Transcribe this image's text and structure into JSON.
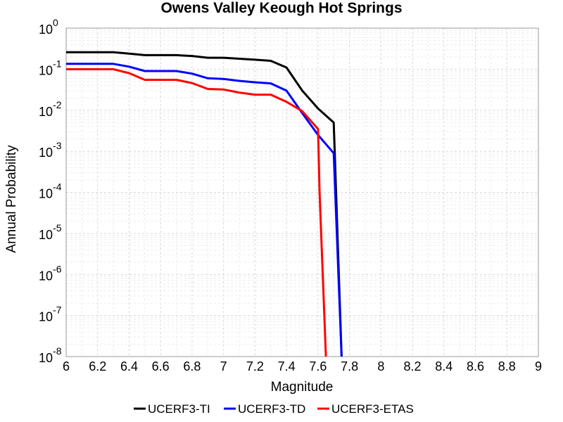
{
  "chart_data": {
    "type": "line",
    "title": "Owens Valley Keough Hot Springs",
    "xlabel": "Magnitude",
    "ylabel": "Annual Probability",
    "xlim": [
      6,
      9
    ],
    "ylim": [
      1e-08,
      1
    ],
    "yscale": "log",
    "grid": true,
    "legend_position": "bottom",
    "x_ticks": [
      "6",
      "6.2",
      "6.4",
      "6.6",
      "6.8",
      "7",
      "7.2",
      "7.4",
      "7.6",
      "7.8",
      "8",
      "8.2",
      "8.4",
      "8.6",
      "8.8",
      "9"
    ],
    "y_ticks": [
      {
        "base": "10",
        "exp": "0"
      },
      {
        "base": "10",
        "exp": "-1"
      },
      {
        "base": "10",
        "exp": "-2"
      },
      {
        "base": "10",
        "exp": "-3"
      },
      {
        "base": "10",
        "exp": "-4"
      },
      {
        "base": "10",
        "exp": "-5"
      },
      {
        "base": "10",
        "exp": "-6"
      },
      {
        "base": "10",
        "exp": "-7"
      },
      {
        "base": "10",
        "exp": "-8"
      }
    ],
    "series": [
      {
        "name": "UCERF3-TI",
        "color": "#000000",
        "x": [
          6.0,
          6.1,
          6.2,
          6.3,
          6.4,
          6.5,
          6.6,
          6.7,
          6.8,
          6.9,
          7.0,
          7.1,
          7.2,
          7.3,
          7.4,
          7.5,
          7.6,
          7.7,
          7.75
        ],
        "y": [
          0.26,
          0.26,
          0.26,
          0.26,
          0.24,
          0.22,
          0.22,
          0.22,
          0.21,
          0.19,
          0.19,
          0.18,
          0.17,
          0.16,
          0.11,
          0.03,
          0.011,
          0.005,
          1e-08
        ]
      },
      {
        "name": "UCERF3-TD",
        "color": "#0000ff",
        "x": [
          6.0,
          6.1,
          6.2,
          6.3,
          6.4,
          6.5,
          6.6,
          6.7,
          6.8,
          6.9,
          7.0,
          7.1,
          7.2,
          7.3,
          7.4,
          7.5,
          7.6,
          7.7,
          7.75
        ],
        "y": [
          0.135,
          0.135,
          0.135,
          0.135,
          0.115,
          0.09,
          0.09,
          0.09,
          0.078,
          0.06,
          0.058,
          0.052,
          0.048,
          0.045,
          0.03,
          0.0085,
          0.0025,
          0.0009,
          1e-08
        ]
      },
      {
        "name": "UCERF3-ETAS",
        "color": "#ff0000",
        "x": [
          6.0,
          6.1,
          6.2,
          6.3,
          6.4,
          6.5,
          6.6,
          6.7,
          6.8,
          6.9,
          7.0,
          7.1,
          7.2,
          7.3,
          7.4,
          7.5,
          7.6,
          7.61,
          7.65
        ],
        "y": [
          0.1,
          0.1,
          0.1,
          0.1,
          0.08,
          0.055,
          0.055,
          0.055,
          0.046,
          0.033,
          0.032,
          0.027,
          0.024,
          0.024,
          0.016,
          0.0095,
          0.0035,
          0.0001,
          1e-08
        ]
      }
    ]
  }
}
